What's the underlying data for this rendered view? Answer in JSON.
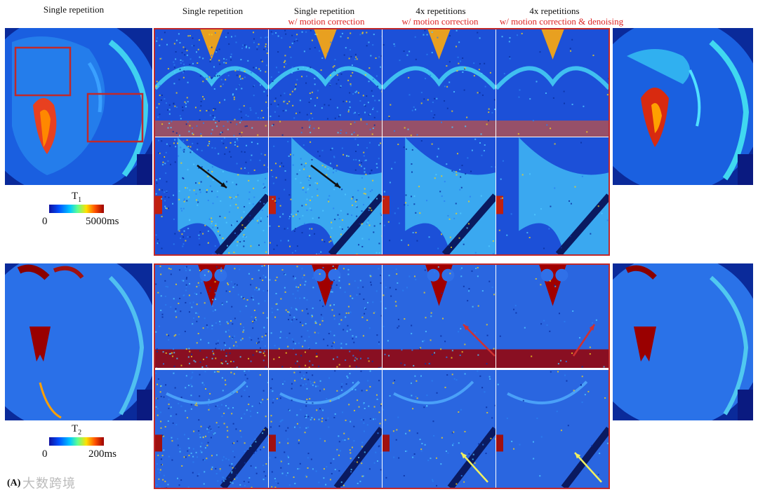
{
  "column_headers": {
    "full_left": "Single repetition",
    "col1": "Single repetition",
    "col2_title": "Single repetition",
    "col2_sub_prefix": "w/",
    "col2_sub": "motion correction",
    "col3_title": "4x  repetitions",
    "col3_sub_prefix": "w/",
    "col3_sub": "motion correction",
    "col4_title": "4x  repetitions",
    "col4_sub_prefix": "w/",
    "col4_sub": "motion correction  & denoising"
  },
  "t1_colorbar": {
    "title": "T",
    "subscript": "1",
    "min": "0",
    "max": "5000ms"
  },
  "t2_colorbar": {
    "title": "T",
    "subscript": "2",
    "min": "0",
    "max": "200ms"
  },
  "panel_label": "(A)",
  "watermark": "大数跨境",
  "colors": {
    "frame": "#c0292b",
    "annotation_red": "#d22222",
    "arrow_black": "#111111",
    "arrow_red": "#d03030",
    "arrow_yellow": "#f0f060"
  }
}
